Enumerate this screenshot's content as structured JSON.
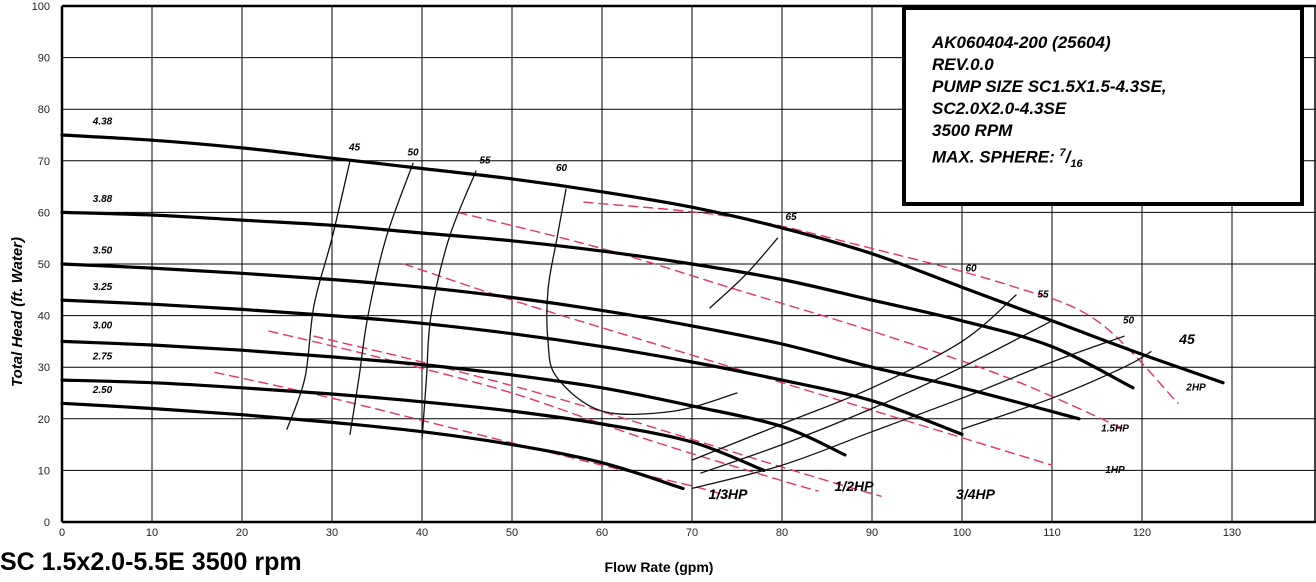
{
  "chart_data": {
    "type": "line",
    "title": "SC 1.5x2.0-5.5E 3500 rpm",
    "xlabel": "Flow Rate (gpm)",
    "ylabel": "Total Head (ft. Water)",
    "xlim": [
      0,
      130
    ],
    "ylim": [
      0,
      100
    ],
    "x_ticks": [
      "0",
      "10",
      "20",
      "30",
      "40",
      "50",
      "60",
      "70",
      "80",
      "90",
      "100",
      "110",
      "120",
      "130"
    ],
    "y_ticks": [
      "0",
      "10",
      "20",
      "30",
      "40",
      "50",
      "60",
      "70",
      "80",
      "90",
      "100"
    ],
    "grid": true,
    "series": [
      {
        "name": "4.38",
        "kind": "impeller",
        "points": [
          [
            0,
            75
          ],
          [
            10,
            74
          ],
          [
            20,
            72.5
          ],
          [
            30,
            70.5
          ],
          [
            40,
            68.5
          ],
          [
            50,
            66.5
          ],
          [
            60,
            64
          ],
          [
            70,
            61
          ],
          [
            80,
            57
          ],
          [
            90,
            52
          ],
          [
            100,
            45.5
          ],
          [
            110,
            39
          ],
          [
            120,
            32.5
          ],
          [
            129,
            27
          ]
        ]
      },
      {
        "name": "3.88",
        "kind": "impeller",
        "points": [
          [
            0,
            60
          ],
          [
            10,
            59.5
          ],
          [
            20,
            58.5
          ],
          [
            30,
            57.5
          ],
          [
            40,
            56
          ],
          [
            50,
            54.5
          ],
          [
            60,
            52.5
          ],
          [
            70,
            50
          ],
          [
            80,
            47
          ],
          [
            90,
            43
          ],
          [
            100,
            39
          ],
          [
            110,
            34
          ],
          [
            119,
            26
          ]
        ]
      },
      {
        "name": "3.50",
        "kind": "impeller",
        "points": [
          [
            0,
            50
          ],
          [
            10,
            49.2
          ],
          [
            20,
            48.2
          ],
          [
            30,
            47
          ],
          [
            40,
            45.5
          ],
          [
            50,
            43.5
          ],
          [
            60,
            41
          ],
          [
            70,
            38
          ],
          [
            80,
            34.5
          ],
          [
            90,
            30
          ],
          [
            100,
            26
          ],
          [
            113,
            20
          ]
        ]
      },
      {
        "name": "3.25",
        "kind": "impeller",
        "points": [
          [
            0,
            43
          ],
          [
            10,
            42.2
          ],
          [
            20,
            41.2
          ],
          [
            30,
            40
          ],
          [
            40,
            38.5
          ],
          [
            50,
            36.5
          ],
          [
            60,
            34
          ],
          [
            70,
            31
          ],
          [
            80,
            27.5
          ],
          [
            90,
            23.5
          ],
          [
            100,
            17
          ]
        ]
      },
      {
        "name": "3.00",
        "kind": "impeller",
        "points": [
          [
            0,
            35
          ],
          [
            10,
            34.3
          ],
          [
            20,
            33.3
          ],
          [
            30,
            32
          ],
          [
            40,
            30.5
          ],
          [
            50,
            28.5
          ],
          [
            60,
            26
          ],
          [
            70,
            22.5
          ],
          [
            80,
            18.5
          ],
          [
            87,
            13
          ]
        ]
      },
      {
        "name": "2.75",
        "kind": "impeller",
        "points": [
          [
            0,
            27.5
          ],
          [
            10,
            27
          ],
          [
            20,
            26
          ],
          [
            30,
            24.8
          ],
          [
            40,
            23.3
          ],
          [
            50,
            21.5
          ],
          [
            60,
            19
          ],
          [
            70,
            15.5
          ],
          [
            78,
            10
          ]
        ]
      },
      {
        "name": "2.50",
        "kind": "impeller",
        "points": [
          [
            0,
            23
          ],
          [
            10,
            22
          ],
          [
            20,
            20.8
          ],
          [
            30,
            19.3
          ],
          [
            40,
            17.5
          ],
          [
            50,
            15
          ],
          [
            60,
            11.5
          ],
          [
            69,
            6.5
          ]
        ]
      },
      {
        "name": "45",
        "kind": "efficiency",
        "points": [
          [
            25,
            18
          ],
          [
            27,
            28
          ],
          [
            28,
            42
          ],
          [
            30,
            55
          ],
          [
            32,
            70
          ]
        ]
      },
      {
        "name": "50",
        "kind": "efficiency",
        "points": [
          [
            32,
            17
          ],
          [
            33,
            28
          ],
          [
            34,
            40
          ],
          [
            36,
            55
          ],
          [
            39,
            69.5
          ]
        ]
      },
      {
        "name": "55",
        "kind": "efficiency",
        "points": [
          [
            40,
            16
          ],
          [
            40.5,
            28
          ],
          [
            41,
            40
          ],
          [
            43,
            55
          ],
          [
            46,
            68
          ]
        ]
      },
      {
        "name": "60",
        "kind": "efficiency",
        "points": [
          [
            56,
            64.5
          ],
          [
            55,
            55
          ],
          [
            54,
            45
          ],
          [
            54,
            35
          ],
          [
            55,
            28
          ],
          [
            60,
            21.5
          ],
          [
            68,
            21.5
          ],
          [
            75,
            25
          ]
        ]
      },
      {
        "name": "65",
        "kind": "efficiency",
        "points": [
          [
            72,
            41.5
          ],
          [
            76,
            48
          ],
          [
            79.5,
            55
          ]
        ]
      },
      {
        "name": "60",
        "kind": "efficiency",
        "points": [
          [
            70,
            12
          ],
          [
            80,
            19
          ],
          [
            90,
            26
          ],
          [
            100,
            35
          ],
          [
            106,
            44
          ]
        ]
      },
      {
        "name": "55",
        "kind": "efficiency",
        "points": [
          [
            71,
            9.5
          ],
          [
            80,
            15
          ],
          [
            90,
            22
          ],
          [
            100,
            30
          ],
          [
            110,
            39
          ]
        ]
      },
      {
        "name": "50",
        "kind": "efficiency",
        "points": [
          [
            70,
            6.5
          ],
          [
            80,
            11
          ],
          [
            90,
            17.5
          ],
          [
            100,
            24
          ],
          [
            110,
            31
          ],
          [
            118,
            36
          ]
        ]
      },
      {
        "name": "45",
        "kind": "efficiency",
        "points": [
          [
            100,
            18
          ],
          [
            110,
            24
          ],
          [
            118,
            30
          ],
          [
            121,
            33
          ]
        ]
      },
      {
        "name": "2HP",
        "kind": "power",
        "points": [
          [
            58,
            62
          ],
          [
            75,
            59
          ],
          [
            90,
            53
          ],
          [
            105,
            46
          ],
          [
            115,
            39
          ],
          [
            124,
            23
          ]
        ]
      },
      {
        "name": "1.5HP",
        "kind": "power",
        "points": [
          [
            44,
            60
          ],
          [
            60,
            53
          ],
          [
            75,
            45
          ],
          [
            90,
            37
          ],
          [
            105,
            28
          ],
          [
            118,
            18
          ]
        ]
      },
      {
        "name": "1HP",
        "kind": "power",
        "points": [
          [
            38,
            50
          ],
          [
            50,
            43
          ],
          [
            65,
            35
          ],
          [
            80,
            27
          ],
          [
            95,
            19
          ],
          [
            110,
            11
          ]
        ]
      },
      {
        "name": "3/4HP",
        "kind": "power",
        "points": [
          [
            28,
            36
          ],
          [
            40,
            31
          ],
          [
            55,
            24
          ],
          [
            70,
            16
          ],
          [
            85,
            8
          ],
          [
            91,
            5
          ]
        ]
      },
      {
        "name": "1/2HP",
        "kind": "power",
        "points": [
          [
            23,
            37
          ],
          [
            35,
            32
          ],
          [
            50,
            25
          ],
          [
            65,
            16
          ],
          [
            80,
            8
          ],
          [
            84,
            6
          ]
        ]
      },
      {
        "name": "1/3HP",
        "kind": "power",
        "points": [
          [
            17,
            29
          ],
          [
            30,
            24
          ],
          [
            45,
            17.5
          ],
          [
            60,
            11
          ],
          [
            70,
            7
          ],
          [
            74,
            5
          ]
        ]
      }
    ],
    "labels": [
      {
        "text": "4.38",
        "x": 4.5,
        "y": 77
      },
      {
        "text": "3.88",
        "x": 4.5,
        "y": 62
      },
      {
        "text": "3.50",
        "x": 4.5,
        "y": 52
      },
      {
        "text": "3.25",
        "x": 4.5,
        "y": 45
      },
      {
        "text": "3.00",
        "x": 4.5,
        "y": 37.5
      },
      {
        "text": "2.75",
        "x": 4.5,
        "y": 31.5
      },
      {
        "text": "2.50",
        "x": 4.5,
        "y": 25
      },
      {
        "text": "45",
        "x": 32.5,
        "y": 72
      },
      {
        "text": "50",
        "x": 39,
        "y": 71
      },
      {
        "text": "55",
        "x": 47,
        "y": 69.5
      },
      {
        "text": "60",
        "x": 55.5,
        "y": 68
      },
      {
        "text": "65",
        "x": 81,
        "y": 58.5
      },
      {
        "text": "60",
        "x": 101,
        "y": 48.5
      },
      {
        "text": "55",
        "x": 109,
        "y": 43.5
      },
      {
        "text": "50",
        "x": 118.5,
        "y": 38.5
      },
      {
        "text": "45",
        "x": 125,
        "y": 34.5
      },
      {
        "text": "2HP",
        "x": 126,
        "y": 25.5
      },
      {
        "text": "1.5HP",
        "x": 117,
        "y": 17.5
      },
      {
        "text": "1HP",
        "x": 117,
        "y": 9.5
      },
      {
        "text": "3/4HP",
        "x": 101.5,
        "y": 4.5
      },
      {
        "text": "1/2HP",
        "x": 88,
        "y": 6
      },
      {
        "text": "1/3HP",
        "x": 74,
        "y": 4.5
      }
    ]
  },
  "info_box": {
    "line1": "AK060404-200 (25604)",
    "line2": "REV.0.0",
    "line3": "PUMP SIZE  SC1.5X1.5-4.3SE,",
    "line4": "SC2.0X2.0-4.3SE",
    "line5": "3500 RPM",
    "line6_prefix": "MAX. SPHERE: ",
    "sphere_num": "7",
    "sphere_den": "16"
  },
  "colors": {
    "impeller": "#000000",
    "efficiency": "#111111",
    "power": "#e8336a",
    "grid": "#000000"
  }
}
